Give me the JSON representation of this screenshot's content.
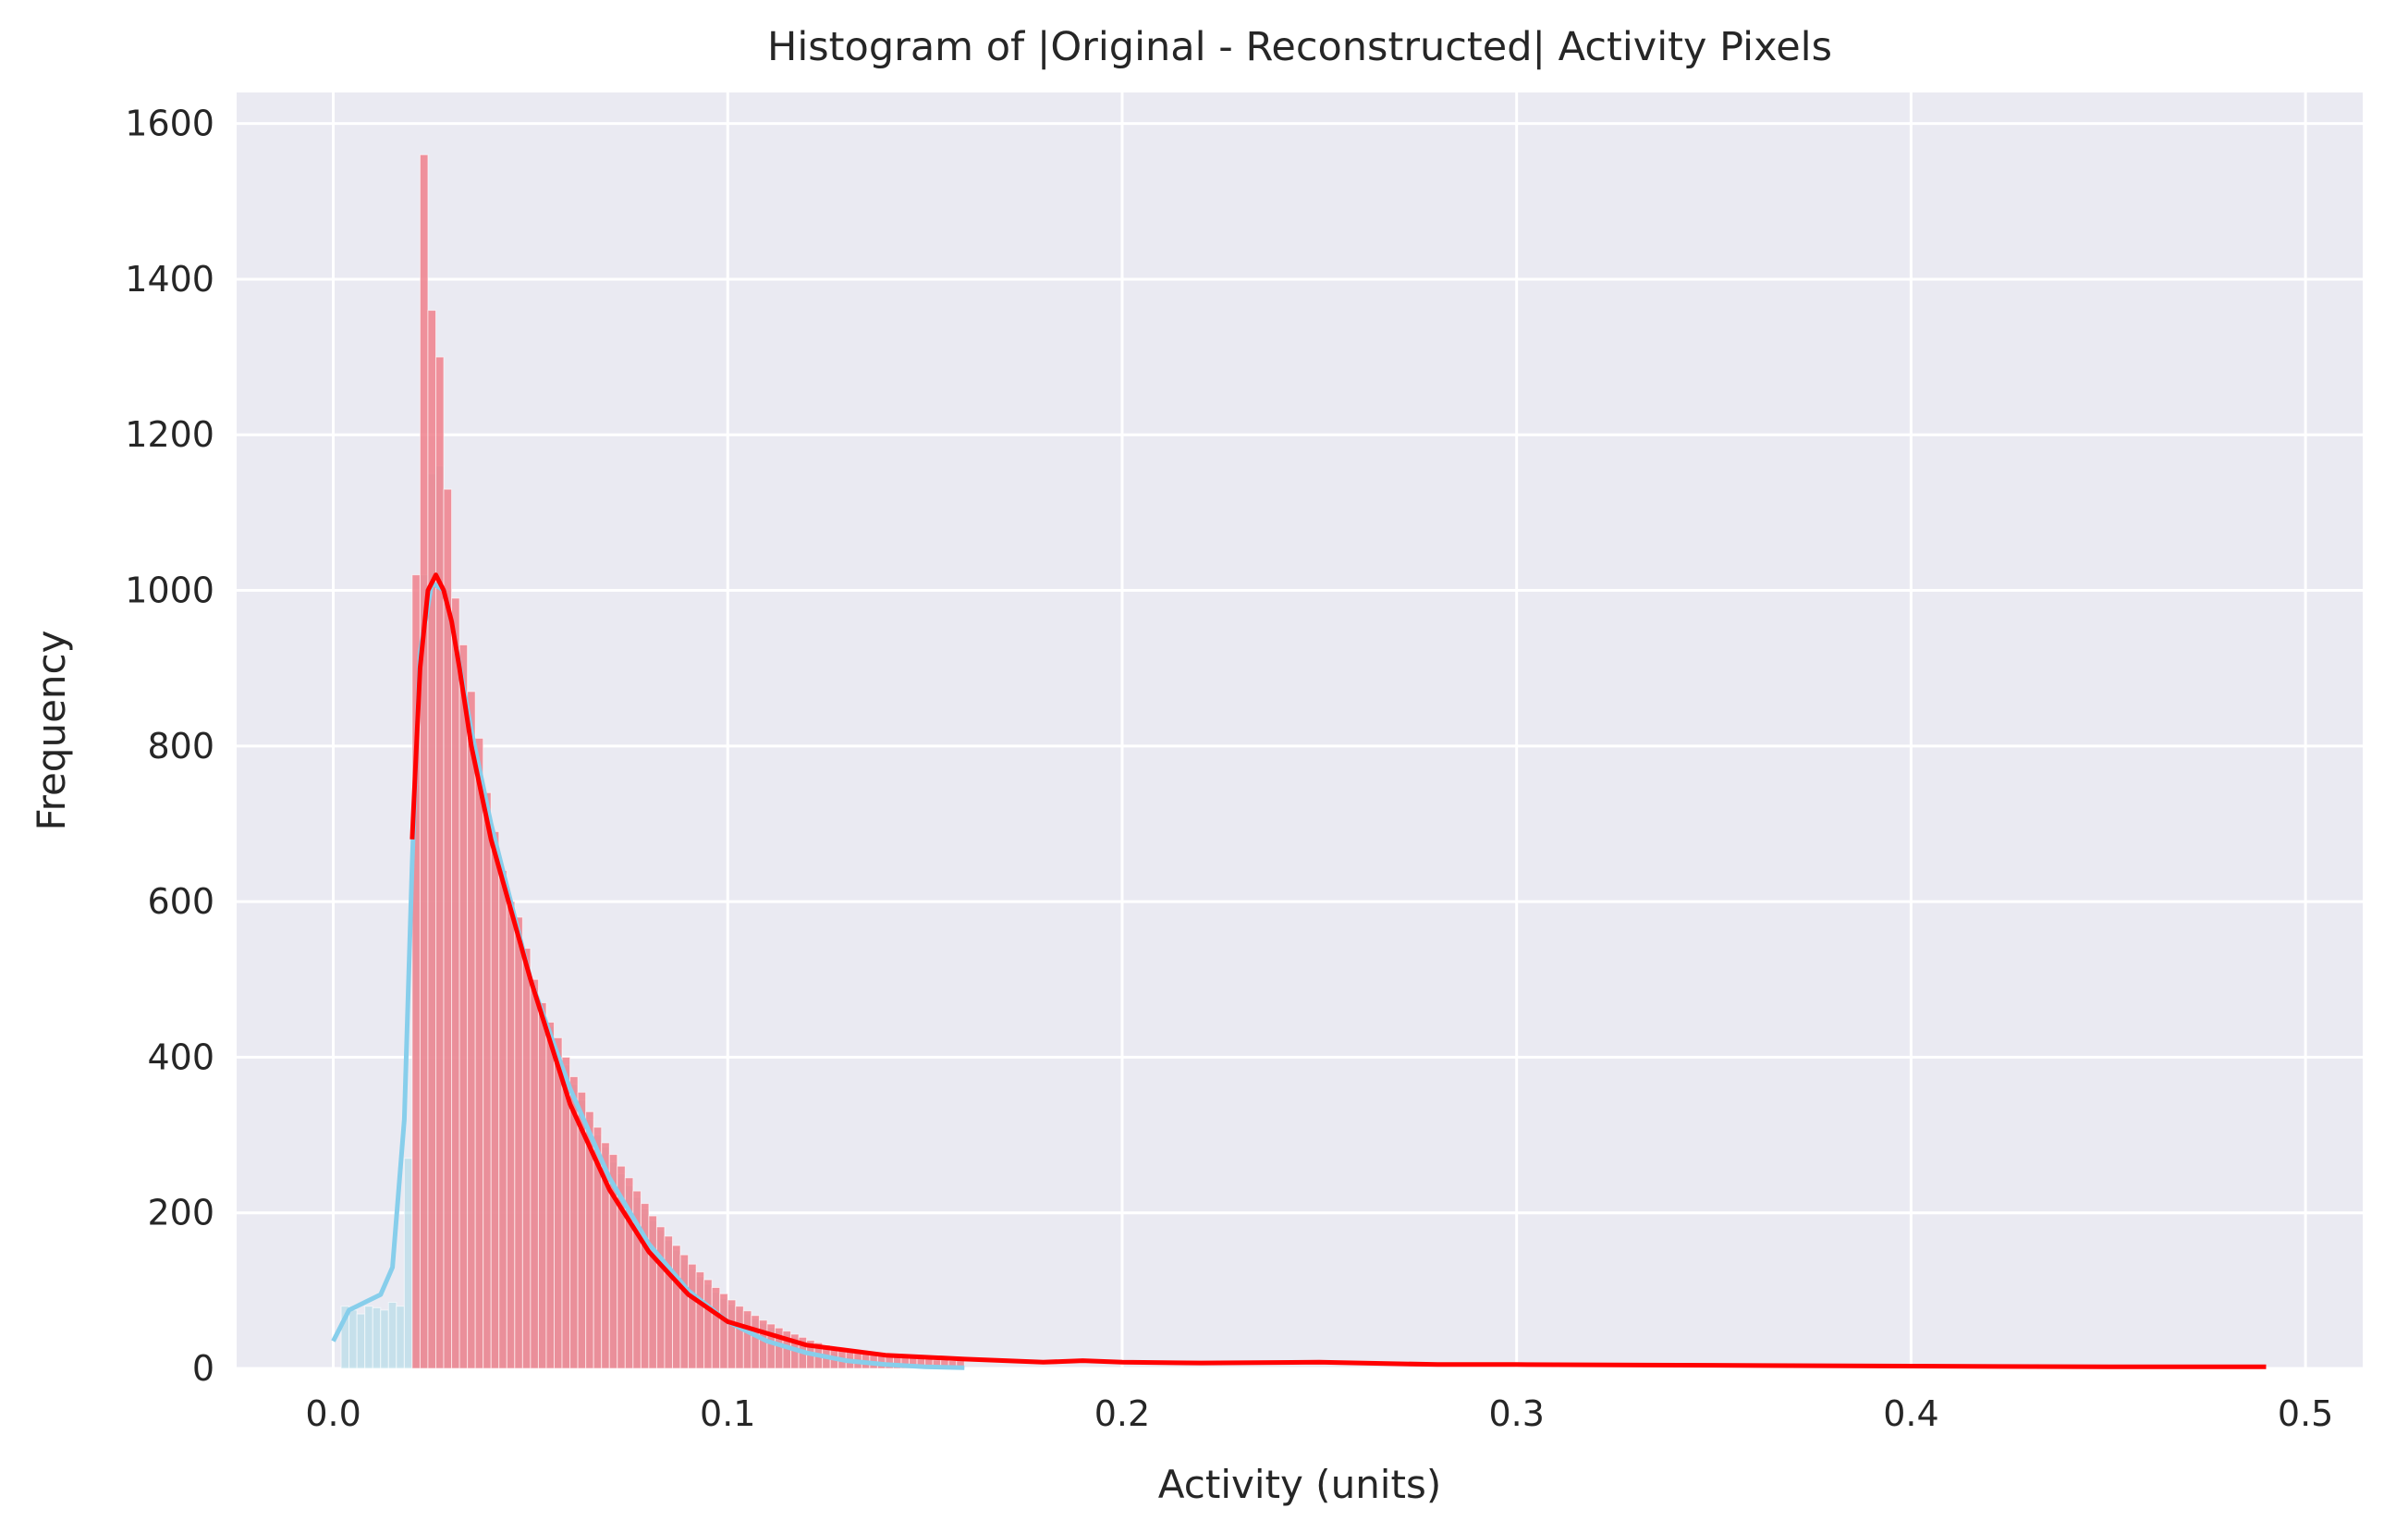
{
  "chart_data": {
    "type": "histogram",
    "title": "Histogram of |Original - Reconstructed| Activity Pixels",
    "xlabel": "Activity (units)",
    "ylabel": "Frequency",
    "xlim": [
      -0.0245,
      0.5145
    ],
    "ylim": [
      0,
      1640
    ],
    "xticks": [
      0.0,
      0.1,
      0.2,
      0.3,
      0.4,
      0.5
    ],
    "xtick_labels": [
      "0.0",
      "0.1",
      "0.2",
      "0.3",
      "0.4",
      "0.5"
    ],
    "yticks": [
      0,
      200,
      400,
      600,
      800,
      1000,
      1200,
      1400,
      1600
    ],
    "ytick_labels": [
      "0",
      "200",
      "400",
      "600",
      "800",
      "1000",
      "1200",
      "1400",
      "1600"
    ],
    "grid": true,
    "legend": "none",
    "series": [
      {
        "name": "blue",
        "color": "#87CEEB",
        "bar_color": "#add8e6",
        "bin_width": 0.002,
        "x_start": 0.0,
        "counts": [
          0,
          80,
          75,
          70,
          80,
          78,
          75,
          85,
          80,
          270,
          750,
          1020,
          1150,
          1160,
          1000,
          920,
          860,
          820,
          760,
          700,
          660,
          620,
          580,
          550,
          520,
          490,
          460,
          440,
          410,
          390,
          365,
          345,
          320,
          300,
          285,
          265,
          250,
          235,
          220,
          205,
          190,
          178,
          165,
          152,
          140,
          128,
          118,
          108,
          98,
          90,
          82,
          76,
          70,
          64,
          58,
          53,
          48,
          44,
          40,
          36,
          32,
          28,
          24,
          20,
          17,
          15,
          13,
          11,
          9,
          8,
          7,
          6,
          5,
          4,
          3,
          2,
          2,
          1,
          1,
          1
        ]
      },
      {
        "name": "red",
        "color": "#FF0000",
        "bar_color": "#f0808c",
        "bin_width": 0.002,
        "x_start": 0.0,
        "counts": [
          0,
          0,
          0,
          0,
          0,
          0,
          0,
          0,
          0,
          0,
          1020,
          1560,
          1360,
          1300,
          1130,
          990,
          930,
          870,
          810,
          740,
          690,
          640,
          600,
          580,
          540,
          500,
          470,
          445,
          425,
          400,
          375,
          355,
          330,
          310,
          290,
          275,
          260,
          245,
          228,
          212,
          196,
          182,
          170,
          158,
          146,
          134,
          124,
          114,
          104,
          96,
          88,
          80,
          74,
          68,
          62,
          57,
          52,
          48,
          44,
          40,
          36,
          33,
          30,
          28,
          26,
          24,
          22,
          20,
          19,
          18,
          17,
          16,
          15,
          14,
          13,
          12,
          11,
          11,
          10,
          10
        ]
      }
    ],
    "kde": [
      {
        "name": "blue-kde",
        "color": "#87CEEB",
        "x": [
          0.0,
          0.004,
          0.008,
          0.012,
          0.015,
          0.018,
          0.02,
          0.022,
          0.025,
          0.028,
          0.03,
          0.035,
          0.04,
          0.05,
          0.06,
          0.07,
          0.08,
          0.09,
          0.1,
          0.11,
          0.12,
          0.13,
          0.14,
          0.15,
          0.16
        ],
        "y": [
          35,
          75,
          85,
          95,
          130,
          320,
          650,
          920,
          1010,
          1000,
          960,
          820,
          700,
          500,
          360,
          245,
          160,
          100,
          60,
          35,
          20,
          10,
          5,
          2,
          1
        ]
      },
      {
        "name": "red-kde",
        "color": "#FF0000",
        "x": [
          0.02,
          0.022,
          0.024,
          0.026,
          0.028,
          0.03,
          0.032,
          0.035,
          0.04,
          0.05,
          0.06,
          0.07,
          0.08,
          0.09,
          0.1,
          0.12,
          0.14,
          0.16,
          0.18,
          0.19,
          0.2,
          0.22,
          0.25,
          0.28,
          0.3,
          0.35,
          0.4,
          0.45,
          0.49
        ],
        "y": [
          680,
          900,
          1000,
          1020,
          1000,
          960,
          900,
          800,
          680,
          500,
          340,
          230,
          150,
          95,
          60,
          30,
          17,
          12,
          8,
          10,
          8,
          7,
          8,
          5,
          5,
          4,
          3,
          2,
          2
        ]
      }
    ]
  }
}
